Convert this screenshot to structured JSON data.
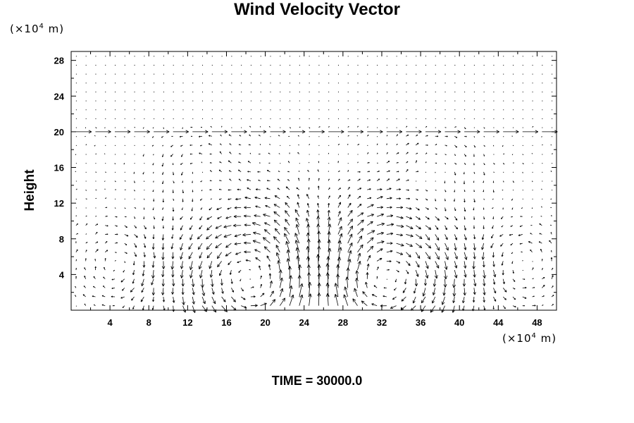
{
  "chart_data": {
    "type": "quiver",
    "title": "Wind Velocity Vector",
    "ylabel": "Height",
    "xlabel": "",
    "y_unit": {
      "prefix": "(×10",
      "exp": "4",
      "suffix": " m)"
    },
    "x_unit": {
      "prefix": "(×10",
      "exp": "4",
      "suffix": " m)"
    },
    "time_label": "TIME = 30000.0",
    "xlim": [
      0,
      50
    ],
    "ylim": [
      0,
      29
    ],
    "x_ticks": [
      4,
      8,
      12,
      16,
      20,
      24,
      28,
      32,
      36,
      40,
      44,
      48
    ],
    "y_ticks": [
      4,
      8,
      12,
      16,
      20,
      24,
      28
    ],
    "x_tick_labels": [
      "4",
      "8",
      "12",
      "16",
      "20",
      "24",
      "28",
      "32",
      "36",
      "40",
      "44",
      "48"
    ],
    "y_tick_labels": [
      "4",
      "8",
      "12",
      "16",
      "20",
      "24",
      "28"
    ],
    "grid": false,
    "vortices": [
      {
        "center_x": 19,
        "center_y": 3.5,
        "radius": 5.5,
        "strength": 1.0
      },
      {
        "center_x": 32,
        "center_y": 3.5,
        "radius": 5.5,
        "strength": -1.0
      },
      {
        "center_x": 5,
        "center_y": 5,
        "radius": 3,
        "strength": -0.8
      },
      {
        "center_x": 46,
        "center_y": 5,
        "radius": 3,
        "strength": 0.8
      },
      {
        "center_x": 13,
        "center_y": 16,
        "radius": 3,
        "strength": 0.5
      },
      {
        "center_x": 38,
        "center_y": 16,
        "radius": 3,
        "strength": -0.5
      }
    ],
    "inversion_height": 20,
    "upper_wind_scale": 0.05
  }
}
